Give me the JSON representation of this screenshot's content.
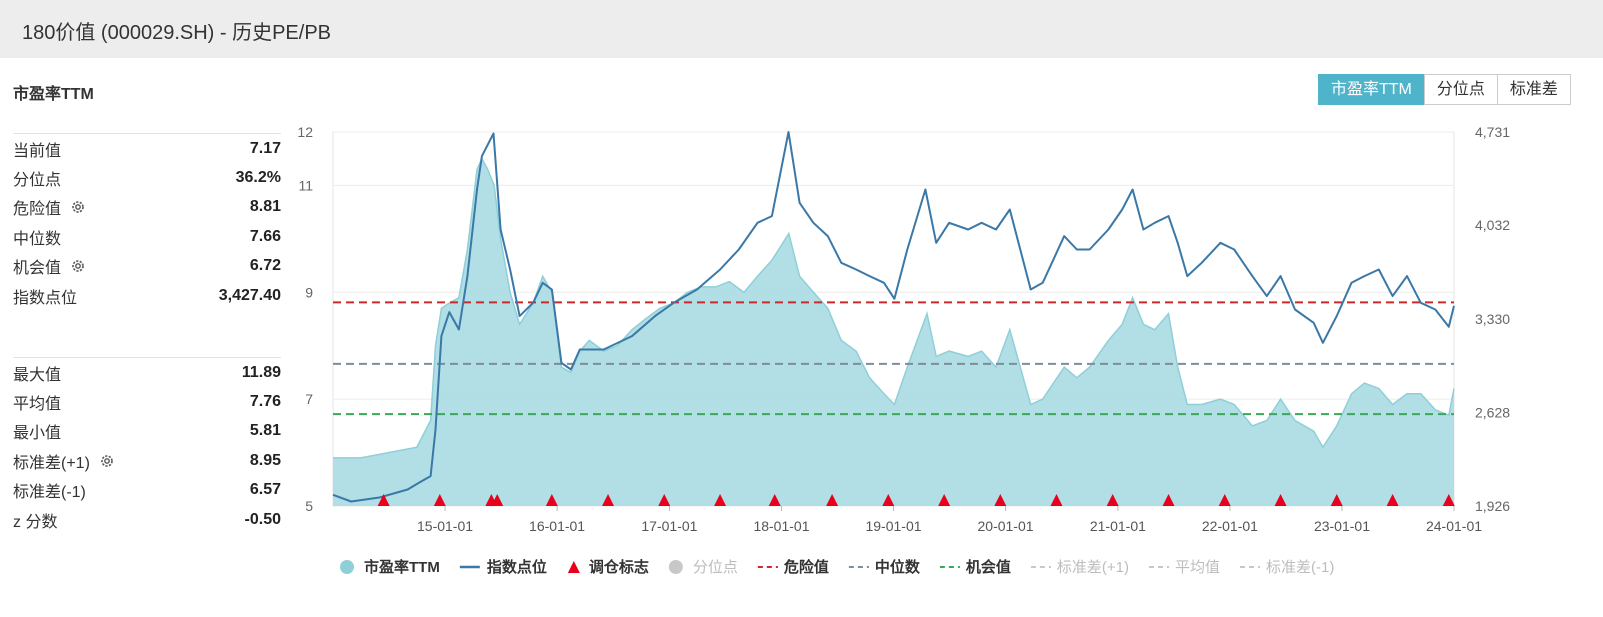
{
  "header": {
    "title": "180价值 (000029.SH) - 历史PE/PB"
  },
  "section_title": "市盈率TTM",
  "tabs": [
    {
      "label": "市盈率TTM",
      "active": true
    },
    {
      "label": "分位点",
      "active": false
    },
    {
      "label": "标准差",
      "active": false
    }
  ],
  "stats_top": [
    {
      "label": "当前值",
      "value": "7.17",
      "gear": false
    },
    {
      "label": "分位点",
      "value": "36.2%",
      "gear": false
    },
    {
      "label": "危险值",
      "value": "8.81",
      "gear": true
    },
    {
      "label": "中位数",
      "value": "7.66",
      "gear": false
    },
    {
      "label": "机会值",
      "value": "6.72",
      "gear": true
    },
    {
      "label": "指数点位",
      "value": "3,427.40",
      "gear": false
    }
  ],
  "stats_bottom": [
    {
      "label": "最大值",
      "value": "11.89",
      "gear": false
    },
    {
      "label": "平均值",
      "value": "7.76",
      "gear": false
    },
    {
      "label": "最小值",
      "value": "5.81",
      "gear": false
    },
    {
      "label": "标准差(+1)",
      "value": "8.95",
      "gear": true
    },
    {
      "label": "标准差(-1)",
      "value": "6.57",
      "gear": false
    },
    {
      "label": "z 分数",
      "value": "-0.50",
      "gear": false
    }
  ],
  "colors": {
    "pe_fill": "#a9dbe2",
    "pe_line": "#8fcfd8",
    "index_line": "#3a78a8",
    "danger": "#cc2a2a",
    "median": "#7d8d99",
    "opportunity": "#3aa857",
    "marker": "#e8001c",
    "active_tab": "#4fb3c9"
  },
  "chart_data": {
    "type": "line",
    "x_start": "2014-01-01",
    "x_end": "2024-01-01",
    "x_ticks": [
      "15-01-01",
      "16-01-01",
      "17-01-01",
      "18-01-01",
      "19-01-01",
      "20-01-01",
      "21-01-01",
      "22-01-01",
      "23-01-01",
      "24-01-01"
    ],
    "y_left": {
      "min": 5,
      "max": 12,
      "ticks": [
        "5",
        "7",
        "9",
        "11",
        "12"
      ]
    },
    "y_right": {
      "min": 1926,
      "max": 4731,
      "ticks": [
        "1,926",
        "2,628",
        "3,330",
        "4,032",
        "4,731"
      ]
    },
    "series": [
      {
        "name": "市盈率TTM",
        "type": "area",
        "axis": "left",
        "points": [
          [
            "2014-01-01",
            5.9
          ],
          [
            "2014-04-01",
            5.9
          ],
          [
            "2014-07-01",
            6.0
          ],
          [
            "2014-10-01",
            6.1
          ],
          [
            "2014-11-15",
            6.6
          ],
          [
            "2014-12-01",
            8.0
          ],
          [
            "2014-12-20",
            8.7
          ],
          [
            "2015-01-15",
            8.8
          ],
          [
            "2015-02-15",
            8.9
          ],
          [
            "2015-03-15",
            9.8
          ],
          [
            "2015-04-15",
            11.3
          ],
          [
            "2015-05-01",
            11.5
          ],
          [
            "2015-05-20",
            11.3
          ],
          [
            "2015-06-10",
            11.0
          ],
          [
            "2015-07-01",
            10.0
          ],
          [
            "2015-08-01",
            9.0
          ],
          [
            "2015-09-01",
            8.4
          ],
          [
            "2015-10-15",
            8.8
          ],
          [
            "2015-11-15",
            9.3
          ],
          [
            "2015-12-15",
            9.0
          ],
          [
            "2016-01-15",
            7.6
          ],
          [
            "2016-02-15",
            7.5
          ],
          [
            "2016-03-15",
            7.9
          ],
          [
            "2016-04-15",
            8.1
          ],
          [
            "2016-06-01",
            7.9
          ],
          [
            "2016-07-15",
            8.0
          ],
          [
            "2016-09-01",
            8.3
          ],
          [
            "2016-10-15",
            8.5
          ],
          [
            "2016-12-01",
            8.7
          ],
          [
            "2017-01-15",
            8.8
          ],
          [
            "2017-03-01",
            9.0
          ],
          [
            "2017-04-15",
            9.1
          ],
          [
            "2017-06-01",
            9.1
          ],
          [
            "2017-07-15",
            9.2
          ],
          [
            "2017-09-01",
            9.0
          ],
          [
            "2017-10-15",
            9.3
          ],
          [
            "2017-12-01",
            9.6
          ],
          [
            "2018-01-25",
            10.1
          ],
          [
            "2018-03-01",
            9.3
          ],
          [
            "2018-04-15",
            9.0
          ],
          [
            "2018-06-01",
            8.7
          ],
          [
            "2018-07-15",
            8.1
          ],
          [
            "2018-09-01",
            7.9
          ],
          [
            "2018-10-15",
            7.4
          ],
          [
            "2018-12-01",
            7.1
          ],
          [
            "2019-01-04",
            6.9
          ],
          [
            "2019-02-15",
            7.6
          ],
          [
            "2019-04-20",
            8.6
          ],
          [
            "2019-05-20",
            7.8
          ],
          [
            "2019-07-01",
            7.9
          ],
          [
            "2019-09-01",
            7.8
          ],
          [
            "2019-10-15",
            7.9
          ],
          [
            "2019-12-01",
            7.6
          ],
          [
            "2020-01-15",
            8.3
          ],
          [
            "2020-03-23",
            6.9
          ],
          [
            "2020-05-01",
            7.0
          ],
          [
            "2020-07-10",
            7.6
          ],
          [
            "2020-08-20",
            7.4
          ],
          [
            "2020-10-01",
            7.6
          ],
          [
            "2020-12-01",
            8.1
          ],
          [
            "2021-01-15",
            8.4
          ],
          [
            "2021-02-18",
            8.9
          ],
          [
            "2021-03-25",
            8.4
          ],
          [
            "2021-05-01",
            8.3
          ],
          [
            "2021-06-15",
            8.6
          ],
          [
            "2021-07-15",
            7.6
          ],
          [
            "2021-08-15",
            6.9
          ],
          [
            "2021-10-01",
            6.9
          ],
          [
            "2021-12-01",
            7.0
          ],
          [
            "2022-01-15",
            6.9
          ],
          [
            "2022-03-15",
            6.5
          ],
          [
            "2022-05-01",
            6.6
          ],
          [
            "2022-06-15",
            7.0
          ],
          [
            "2022-08-01",
            6.6
          ],
          [
            "2022-10-01",
            6.4
          ],
          [
            "2022-10-31",
            6.1
          ],
          [
            "2022-12-15",
            6.5
          ],
          [
            "2023-02-01",
            7.1
          ],
          [
            "2023-03-15",
            7.3
          ],
          [
            "2023-05-01",
            7.2
          ],
          [
            "2023-06-15",
            6.9
          ],
          [
            "2023-08-01",
            7.1
          ],
          [
            "2023-09-15",
            7.1
          ],
          [
            "2023-11-01",
            6.8
          ],
          [
            "2023-12-15",
            6.7
          ],
          [
            "2024-01-01",
            7.2
          ]
        ]
      },
      {
        "name": "指数点位",
        "type": "line",
        "axis": "right",
        "points": [
          [
            "2014-01-01",
            2010
          ],
          [
            "2014-03-01",
            1960
          ],
          [
            "2014-06-01",
            1990
          ],
          [
            "2014-09-01",
            2050
          ],
          [
            "2014-10-15",
            2110
          ],
          [
            "2014-11-15",
            2150
          ],
          [
            "2014-12-01",
            2500
          ],
          [
            "2014-12-20",
            3200
          ],
          [
            "2015-01-15",
            3380
          ],
          [
            "2015-02-15",
            3250
          ],
          [
            "2015-03-15",
            3650
          ],
          [
            "2015-04-15",
            4300
          ],
          [
            "2015-05-01",
            4550
          ],
          [
            "2015-06-08",
            4720
          ],
          [
            "2015-07-01",
            4000
          ],
          [
            "2015-08-01",
            3700
          ],
          [
            "2015-09-01",
            3350
          ],
          [
            "2015-10-15",
            3450
          ],
          [
            "2015-11-15",
            3600
          ],
          [
            "2015-12-15",
            3550
          ],
          [
            "2016-01-15",
            3000
          ],
          [
            "2016-02-15",
            2950
          ],
          [
            "2016-03-15",
            3100
          ],
          [
            "2016-06-01",
            3100
          ],
          [
            "2016-09-01",
            3200
          ],
          [
            "2016-11-15",
            3350
          ],
          [
            "2017-01-15",
            3450
          ],
          [
            "2017-04-01",
            3550
          ],
          [
            "2017-06-15",
            3700
          ],
          [
            "2017-08-15",
            3850
          ],
          [
            "2017-10-15",
            4050
          ],
          [
            "2017-12-01",
            4100
          ],
          [
            "2018-01-24",
            4731
          ],
          [
            "2018-03-01",
            4200
          ],
          [
            "2018-04-15",
            4050
          ],
          [
            "2018-06-01",
            3950
          ],
          [
            "2018-07-15",
            3750
          ],
          [
            "2018-09-01",
            3700
          ],
          [
            "2018-10-15",
            3650
          ],
          [
            "2018-12-01",
            3600
          ],
          [
            "2019-01-04",
            3480
          ],
          [
            "2019-02-15",
            3850
          ],
          [
            "2019-04-15",
            4300
          ],
          [
            "2019-05-20",
            3900
          ],
          [
            "2019-07-01",
            4050
          ],
          [
            "2019-09-01",
            4000
          ],
          [
            "2019-10-15",
            4050
          ],
          [
            "2019-12-01",
            4000
          ],
          [
            "2020-01-15",
            4150
          ],
          [
            "2020-03-23",
            3550
          ],
          [
            "2020-05-01",
            3600
          ],
          [
            "2020-07-10",
            3950
          ],
          [
            "2020-08-20",
            3850
          ],
          [
            "2020-10-01",
            3850
          ],
          [
            "2020-12-01",
            4000
          ],
          [
            "2021-01-15",
            4150
          ],
          [
            "2021-02-18",
            4300
          ],
          [
            "2021-03-25",
            4000
          ],
          [
            "2021-05-01",
            4050
          ],
          [
            "2021-06-15",
            4100
          ],
          [
            "2021-07-15",
            3900
          ],
          [
            "2021-08-15",
            3650
          ],
          [
            "2021-10-01",
            3750
          ],
          [
            "2021-12-01",
            3900
          ],
          [
            "2022-01-15",
            3850
          ],
          [
            "2022-03-15",
            3650
          ],
          [
            "2022-05-01",
            3500
          ],
          [
            "2022-06-15",
            3650
          ],
          [
            "2022-08-01",
            3400
          ],
          [
            "2022-10-01",
            3300
          ],
          [
            "2022-10-31",
            3150
          ],
          [
            "2022-12-15",
            3350
          ],
          [
            "2023-02-01",
            3600
          ],
          [
            "2023-03-15",
            3650
          ],
          [
            "2023-05-01",
            3700
          ],
          [
            "2023-06-15",
            3500
          ],
          [
            "2023-08-01",
            3650
          ],
          [
            "2023-09-15",
            3450
          ],
          [
            "2023-11-01",
            3400
          ],
          [
            "2023-12-15",
            3270
          ],
          [
            "2024-01-01",
            3427
          ]
        ]
      }
    ],
    "reference_lines": [
      {
        "name": "危险值",
        "value": 8.81,
        "style": "dashed",
        "color": "#cc2a2a"
      },
      {
        "name": "中位数",
        "value": 7.66,
        "style": "dashed",
        "color": "#7d8d99"
      },
      {
        "name": "机会值",
        "value": 6.72,
        "style": "dashed",
        "color": "#3aa857"
      }
    ],
    "rebalance_markers": [
      "2014-06-15",
      "2014-12-15",
      "2015-06-01",
      "2015-06-20",
      "2015-12-15",
      "2016-06-15",
      "2016-12-15",
      "2017-06-15",
      "2017-12-10",
      "2018-06-15",
      "2018-12-15",
      "2019-06-15",
      "2019-12-15",
      "2020-06-15",
      "2020-12-15",
      "2021-06-15",
      "2021-12-15",
      "2022-06-15",
      "2022-12-15",
      "2023-06-15",
      "2023-12-15"
    ],
    "legend": [
      {
        "name": "市盈率TTM",
        "marker": "circle",
        "color": "#8fd0d8",
        "enabled": true
      },
      {
        "name": "指数点位",
        "marker": "line",
        "color": "#3a78a8",
        "enabled": true
      },
      {
        "name": "调仓标志",
        "marker": "triangle",
        "color": "#e8001c",
        "enabled": true
      },
      {
        "name": "分位点",
        "marker": "circle",
        "color": "#cccccc",
        "enabled": false
      },
      {
        "name": "危险值",
        "marker": "dash",
        "color": "#cc2a2a",
        "enabled": true
      },
      {
        "name": "中位数",
        "marker": "dash",
        "color": "#7d8d99",
        "enabled": true
      },
      {
        "name": "机会值",
        "marker": "dash",
        "color": "#3aa857",
        "enabled": true
      },
      {
        "name": "标准差(+1)",
        "marker": "dash",
        "color": "#cccccc",
        "enabled": false
      },
      {
        "name": "平均值",
        "marker": "dash",
        "color": "#cccccc",
        "enabled": false
      },
      {
        "name": "标准差(-1)",
        "marker": "dash",
        "color": "#cccccc",
        "enabled": false
      }
    ],
    "legend_position": "bottom"
  }
}
